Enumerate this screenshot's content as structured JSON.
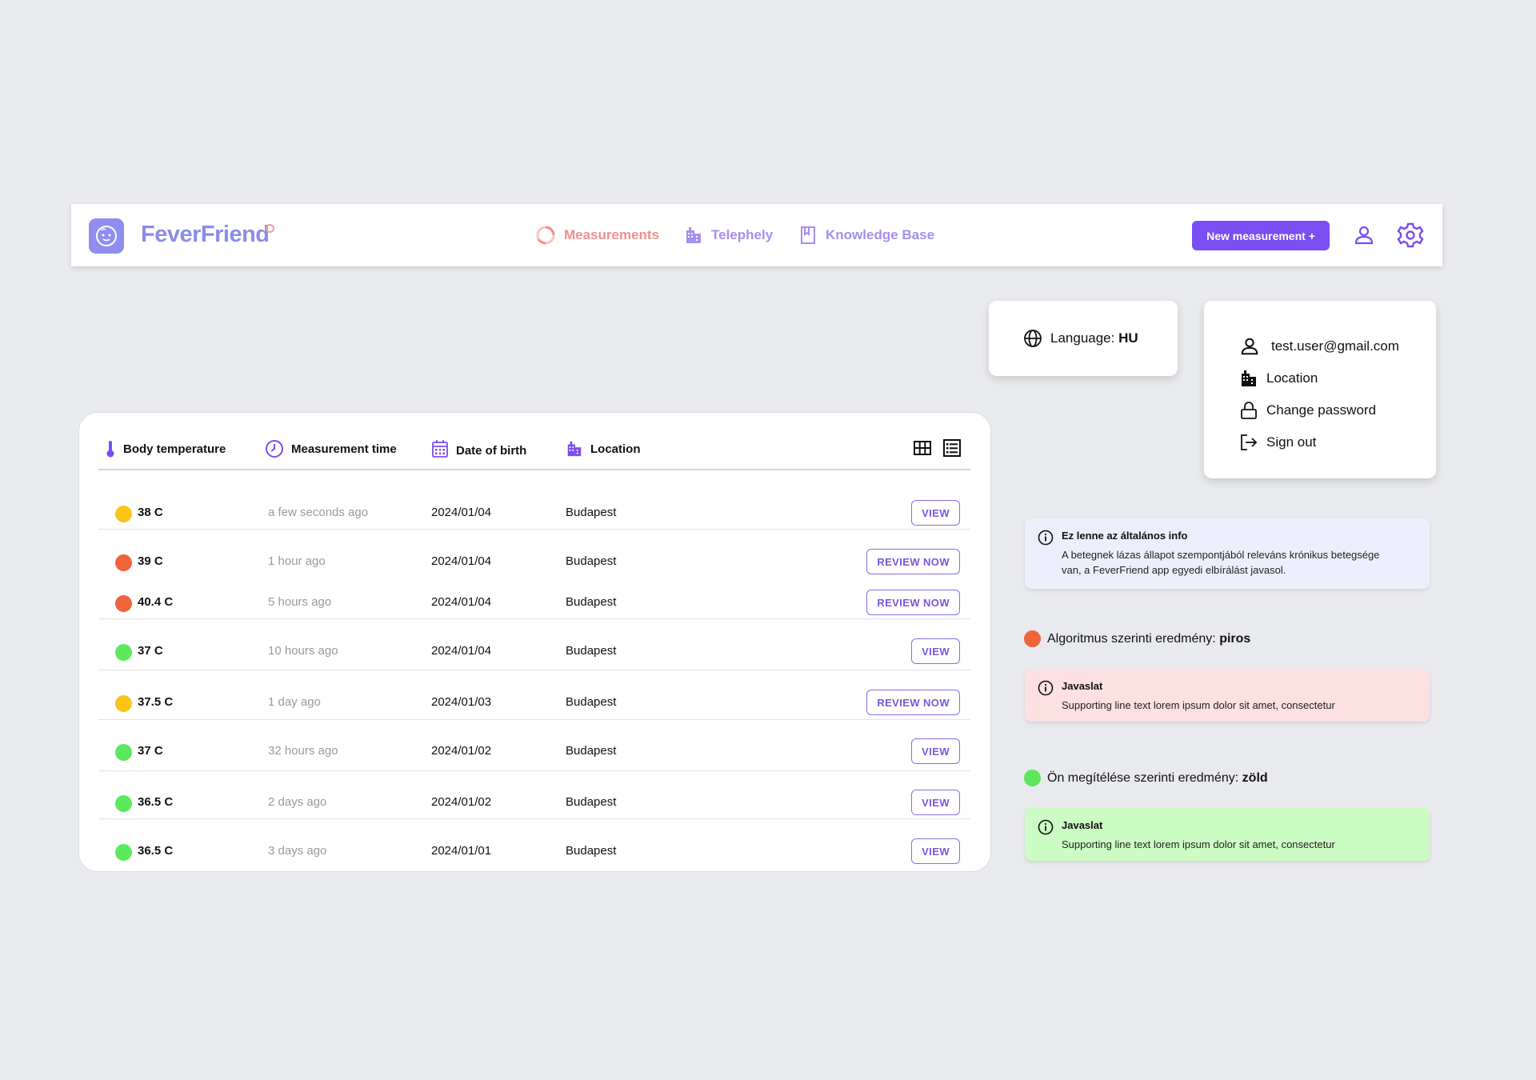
{
  "header": {
    "brand": "FeverFriend",
    "nav": [
      {
        "label": "Measurements",
        "icon": "loading-ring-icon",
        "color": "#f08f8c"
      },
      {
        "label": "Telephely",
        "icon": "building-icon",
        "color": "#a58ff0"
      },
      {
        "label": "Knowledge Base",
        "icon": "bookmark-icon",
        "color": "#a58ff0"
      }
    ],
    "new_measurement_label": "New measurement +"
  },
  "language_card": {
    "label": "Language: ",
    "value": "HU"
  },
  "user_menu": {
    "email": "test.user@gmail.com",
    "items": [
      "Location",
      "Change password",
      "Sign out"
    ]
  },
  "table": {
    "headers": [
      "Body temperature",
      "Measurement time",
      "Date of birth",
      "Location"
    ],
    "rows": [
      {
        "status": "#fcc419",
        "temp": "38 C",
        "time": "a few seconds ago",
        "dob": "2024/01/04",
        "location": "Budapest",
        "action": "VIEW"
      },
      {
        "status": "#f0643c",
        "temp": "39 C",
        "time": "1 hour ago",
        "dob": "2024/01/04",
        "location": "Budapest",
        "action": "REVIEW NOW"
      },
      {
        "status": "#f0643c",
        "temp": "40.4 C",
        "time": "5 hours ago",
        "dob": "2024/01/04",
        "location": "Budapest",
        "action": "REVIEW NOW"
      },
      {
        "status": "#5ce85c",
        "temp": "37 C",
        "time": "10 hours ago",
        "dob": "2024/01/04",
        "location": "Budapest",
        "action": "VIEW"
      },
      {
        "status": "#fcc419",
        "temp": "37.5 C",
        "time": "1 day ago",
        "dob": "2024/01/03",
        "location": "Budapest",
        "action": "REVIEW NOW"
      },
      {
        "status": "#5ce85c",
        "temp": "37 C",
        "time": "32 hours ago",
        "dob": "2024/01/02",
        "location": "Budapest",
        "action": "VIEW"
      },
      {
        "status": "#5ce85c",
        "temp": "36.5 C",
        "time": "2 days ago",
        "dob": "2024/01/02",
        "location": "Budapest",
        "action": "VIEW"
      },
      {
        "status": "#5ce85c",
        "temp": "36.5 C",
        "time": "3 days ago",
        "dob": "2024/01/01",
        "location": "Budapest",
        "action": "VIEW"
      }
    ]
  },
  "general_info": {
    "title": "Ez lenne az általános info",
    "line1": "A betegnek lázas állapot szempontjából releváns krónikus betegsége",
    "line2": "van, a FeverFriend app egyedi elbírálást javasol."
  },
  "algorithm_result": {
    "label": "Algoritmus szerinti eredmény: ",
    "value": "piros",
    "color": "#f0643c"
  },
  "algorithm_suggestion": {
    "title": "Javaslat",
    "body": "Supporting line text lorem ipsum dolor sit amet, consectetur"
  },
  "own_result": {
    "label": "Ön megítélése szerinti eredmény: ",
    "value": "zöld",
    "color": "#5ce85c"
  },
  "own_suggestion": {
    "title": "Javaslat",
    "body": "Supporting line text lorem ipsum dolor sit amet, consectetur"
  }
}
